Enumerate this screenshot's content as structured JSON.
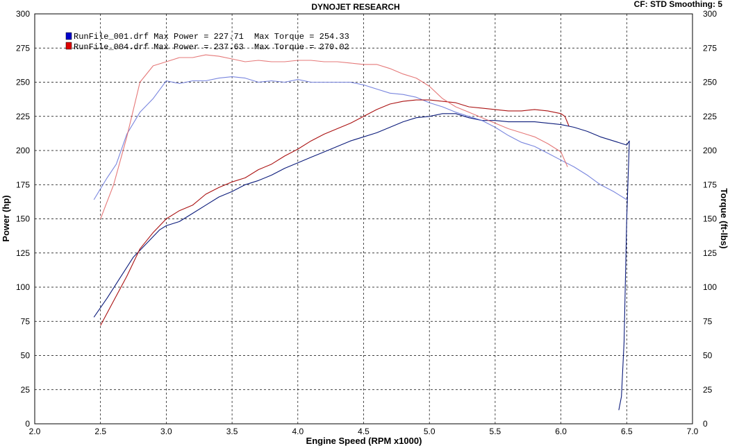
{
  "chart_data": {
    "type": "line",
    "title": "DYNOJET RESEARCH",
    "corner_info": "CF: STD  Smoothing: 5",
    "xlabel": "Engine Speed (RPM x1000)",
    "ylabel_left": "Power (hp)",
    "ylabel_right": "Torque (ft-lbs)",
    "xlim": [
      2.0,
      7.0
    ],
    "ylim": [
      0,
      300
    ],
    "x_ticks": [
      "2.0",
      "2.5",
      "3.0",
      "3.5",
      "4.0",
      "4.5",
      "5.0",
      "5.5",
      "6.0",
      "6.5",
      "7.0"
    ],
    "y_ticks": [
      "0",
      "25",
      "50",
      "75",
      "100",
      "125",
      "150",
      "175",
      "200",
      "225",
      "250",
      "275",
      "300"
    ],
    "grid": true,
    "legend_position": "top-left",
    "legend": [
      {
        "text": "RunFile_001.drf Max Power = 227.71",
        "torque_text": "Max Torque = 254.33",
        "color": "#0000cc"
      },
      {
        "text": "RunFile_004.drf Max Power = 237.63",
        "torque_text": "Max Torque = 270.02",
        "color": "#dd0000"
      }
    ],
    "series": [
      {
        "name": "RunFile_001.drf",
        "measure": "power",
        "color": "#0a1a7a",
        "opacity": 1,
        "x": [
          2.45,
          2.55,
          2.65,
          2.75,
          2.85,
          2.95,
          3.0,
          3.1,
          3.2,
          3.3,
          3.4,
          3.5,
          3.6,
          3.7,
          3.8,
          3.9,
          4.0,
          4.1,
          4.2,
          4.3,
          4.4,
          4.5,
          4.6,
          4.7,
          4.8,
          4.9,
          5.0,
          5.1,
          5.2,
          5.3,
          5.4,
          5.5,
          5.6,
          5.7,
          5.8,
          5.9,
          6.0,
          6.1,
          6.2,
          6.3,
          6.4,
          6.5,
          6.52,
          6.5,
          6.48,
          6.46,
          6.44
        ],
        "y": [
          78,
          92,
          107,
          122,
          132,
          142,
          145,
          148,
          154,
          160,
          166,
          170,
          175,
          178,
          182,
          187,
          191,
          195,
          199,
          203,
          207,
          210,
          213,
          217,
          221,
          224,
          225,
          227,
          227,
          224,
          222,
          222,
          221,
          221,
          221,
          220,
          219,
          217,
          214,
          210,
          207,
          204,
          207,
          150,
          60,
          20,
          10
        ]
      },
      {
        "name": "RunFile_001.drf",
        "measure": "torque",
        "color": "#6070d8",
        "opacity": 0.85,
        "x": [
          2.45,
          2.55,
          2.62,
          2.7,
          2.8,
          2.9,
          3.0,
          3.1,
          3.2,
          3.3,
          3.4,
          3.5,
          3.6,
          3.7,
          3.8,
          3.9,
          4.0,
          4.1,
          4.2,
          4.3,
          4.4,
          4.5,
          4.6,
          4.7,
          4.8,
          4.9,
          5.0,
          5.1,
          5.2,
          5.3,
          5.4,
          5.5,
          5.6,
          5.7,
          5.8,
          5.9,
          6.0,
          6.1,
          6.2,
          6.3,
          6.4,
          6.5
        ],
        "y": [
          164,
          180,
          190,
          212,
          228,
          238,
          251,
          249,
          251,
          251,
          253,
          254,
          253,
          250,
          251,
          250,
          252,
          250,
          250,
          250,
          250,
          248,
          245,
          242,
          241,
          239,
          235,
          232,
          228,
          225,
          222,
          217,
          211,
          206,
          203,
          198,
          193,
          188,
          182,
          175,
          170,
          164
        ]
      },
      {
        "name": "RunFile_004.drf",
        "measure": "power",
        "color": "#aa1010",
        "opacity": 1,
        "x": [
          2.5,
          2.6,
          2.7,
          2.8,
          2.9,
          3.0,
          3.1,
          3.2,
          3.3,
          3.4,
          3.5,
          3.6,
          3.7,
          3.8,
          3.9,
          4.0,
          4.1,
          4.2,
          4.3,
          4.4,
          4.5,
          4.6,
          4.7,
          4.8,
          4.9,
          5.0,
          5.1,
          5.2,
          5.3,
          5.4,
          5.5,
          5.6,
          5.7,
          5.8,
          5.9,
          6.0,
          6.03,
          6.06
        ],
        "y": [
          72,
          90,
          108,
          128,
          140,
          150,
          156,
          160,
          168,
          173,
          177,
          180,
          186,
          190,
          196,
          201,
          207,
          212,
          216,
          220,
          225,
          230,
          234,
          236,
          237,
          237,
          236,
          235,
          232,
          231,
          230,
          229,
          229,
          230,
          229,
          227,
          225,
          218
        ]
      },
      {
        "name": "RunFile_004.drf",
        "measure": "torque",
        "color": "#e06060",
        "opacity": 0.85,
        "x": [
          2.5,
          2.6,
          2.7,
          2.8,
          2.9,
          3.0,
          3.1,
          3.2,
          3.3,
          3.4,
          3.5,
          3.6,
          3.7,
          3.8,
          3.9,
          4.0,
          4.1,
          4.2,
          4.3,
          4.4,
          4.5,
          4.6,
          4.7,
          4.8,
          4.9,
          5.0,
          5.1,
          5.2,
          5.3,
          5.4,
          5.5,
          5.6,
          5.7,
          5.8,
          5.9,
          6.0,
          6.05
        ],
        "y": [
          150,
          175,
          210,
          250,
          262,
          265,
          268,
          268,
          270,
          269,
          267,
          265,
          266,
          265,
          265,
          266,
          266,
          265,
          265,
          264,
          263,
          263,
          260,
          256,
          253,
          247,
          238,
          232,
          228,
          224,
          220,
          216,
          213,
          210,
          205,
          199,
          188
        ]
      }
    ]
  }
}
